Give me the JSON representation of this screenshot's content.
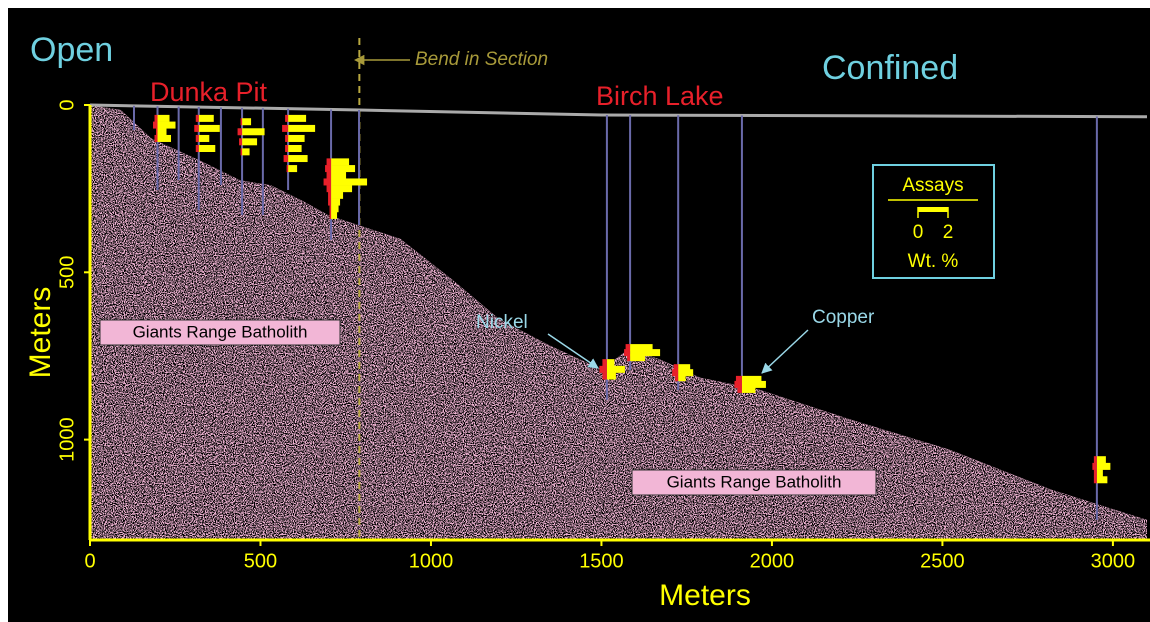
{
  "chart_data": {
    "type": "cross-section",
    "labels": {
      "open": "Open",
      "confined": "Confined",
      "dunka": "Dunka Pit",
      "birch": "Birch Lake",
      "rock_left": "Giants Range Batholith",
      "rock_right": "Giants Range Batholith",
      "nickel": "Nickel",
      "copper": "Copper"
    },
    "bend": {
      "label": "Bend in Section",
      "x": 790
    },
    "x_label": "Meters",
    "y_label": "Meters",
    "xlim": [
      0,
      3100
    ],
    "ylim": [
      0,
      1300
    ],
    "y_inverted": true,
    "xticks": [
      0,
      500,
      1000,
      1500,
      2000,
      2500,
      3000
    ],
    "yticks": [
      0,
      500,
      1000
    ],
    "surface": {
      "x": [
        0,
        790,
        1500,
        3100
      ],
      "y": [
        0,
        15,
        30,
        35
      ],
      "color": "#aaaaaa"
    },
    "bedrock": {
      "color": "#f2b6d6",
      "x": [
        0,
        90,
        180,
        320,
        440,
        530,
        620,
        700,
        790,
        910,
        1060,
        1200,
        1350,
        1500,
        1580,
        1670,
        1790,
        1960,
        2230,
        2520,
        2820,
        3100
      ],
      "y": [
        0,
        15,
        100,
        165,
        225,
        240,
        285,
        330,
        360,
        400,
        520,
        640,
        720,
        790,
        730,
        760,
        815,
        850,
        940,
        1030,
        1150,
        1240
      ]
    },
    "drill_holes": {
      "color": "#6a6aaa",
      "x": [
        129,
        198,
        260,
        319,
        384,
        446,
        507,
        581,
        707,
        789,
        1516,
        1584,
        1725,
        1912,
        2953
      ],
      "depth": [
        75,
        254,
        224,
        314,
        239,
        329,
        329,
        254,
        403,
        359,
        881,
        792,
        852,
        852,
        1240
      ]
    },
    "assays": {
      "title": "Assays",
      "ticks": [
        0,
        2
      ],
      "unit": "Wt. %",
      "copper_color": "#ffff00",
      "nickel_color": "#e8202a",
      "holes": [
        {
          "x": 198,
          "depth": [
            40,
            60,
            80,
            100
          ],
          "copper": [
            0.8,
            1.2,
            0.6,
            0.9
          ],
          "nickel": [
            0.2,
            0.3,
            0.1,
            0.2
          ]
        },
        {
          "x": 319,
          "depth": [
            40,
            70,
            100,
            130
          ],
          "copper": [
            1.0,
            1.4,
            0.7,
            1.1
          ],
          "nickel": [
            0.2,
            0.3,
            0.2,
            0.2
          ]
        },
        {
          "x": 446,
          "depth": [
            50,
            80,
            110,
            140
          ],
          "copper": [
            0.6,
            1.5,
            1.0,
            0.5
          ],
          "nickel": [
            0.1,
            0.3,
            0.2,
            0.1
          ]
        },
        {
          "x": 581,
          "depth": [
            40,
            70,
            100,
            130,
            160,
            190
          ],
          "copper": [
            1.2,
            1.8,
            1.1,
            0.9,
            1.3,
            0.6
          ],
          "nickel": [
            0.2,
            0.4,
            0.2,
            0.2,
            0.3,
            0.1
          ]
        },
        {
          "x": 707,
          "depth": [
            170,
            190,
            210,
            230,
            250,
            270,
            290,
            310,
            330
          ],
          "copper": [
            1.2,
            1.6,
            1.0,
            2.4,
            1.4,
            0.8,
            0.6,
            0.5,
            0.4
          ],
          "nickel": [
            0.3,
            0.4,
            0.3,
            0.5,
            0.3,
            0.2,
            0.2,
            0.1,
            0.1
          ]
        },
        {
          "x": 1516,
          "depth": [
            770,
            790,
            810
          ],
          "copper": [
            0.5,
            1.2,
            0.6
          ],
          "nickel": [
            0.3,
            0.5,
            0.3
          ]
        },
        {
          "x": 1584,
          "depth": [
            725,
            740,
            755
          ],
          "copper": [
            1.5,
            2.0,
            1.0
          ],
          "nickel": [
            0.3,
            0.4,
            0.2
          ]
        },
        {
          "x": 1725,
          "depth": [
            785,
            800,
            815
          ],
          "copper": [
            0.8,
            1.0,
            0.5
          ],
          "nickel": [
            0.3,
            0.4,
            0.2
          ]
        },
        {
          "x": 1912,
          "depth": [
            820,
            835,
            850
          ],
          "copper": [
            1.3,
            1.6,
            0.9
          ],
          "nickel": [
            0.4,
            0.5,
            0.3
          ]
        },
        {
          "x": 2953,
          "depth": [
            1060,
            1080,
            1100,
            1120
          ],
          "copper": [
            0.6,
            0.9,
            0.4,
            0.7
          ],
          "nickel": [
            0.2,
            0.3,
            0.2,
            0.2
          ]
        }
      ]
    }
  }
}
